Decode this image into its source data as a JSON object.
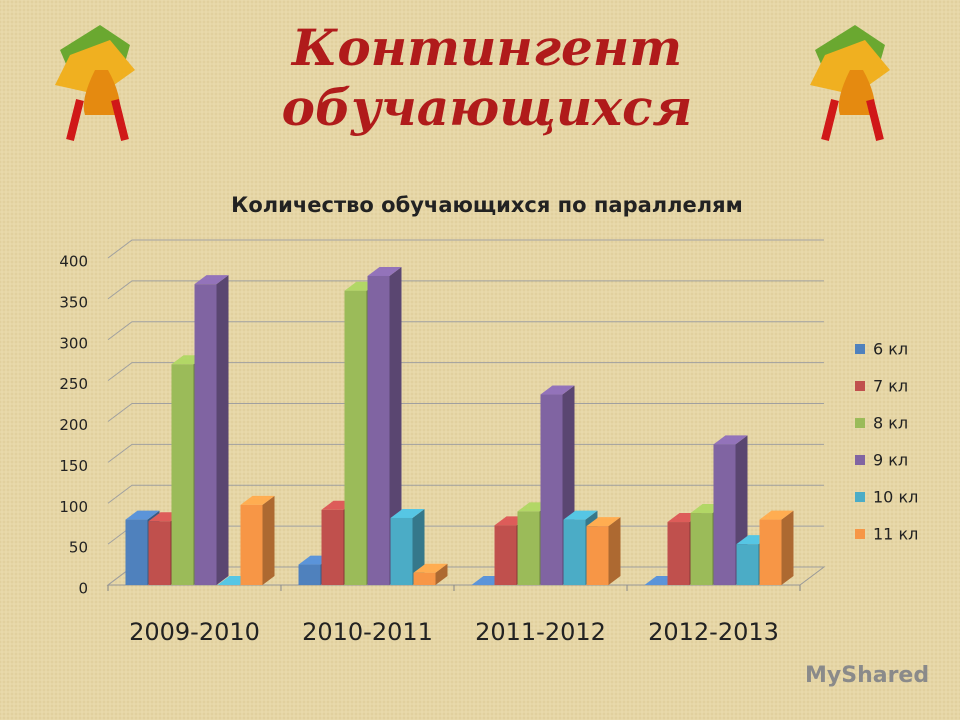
{
  "title": [
    "Контингент",
    "обучающихся"
  ],
  "watermark": "MyShared",
  "chart_data": {
    "type": "bar3d",
    "title": "Количество обучающихся по параллелям",
    "categories": [
      "2009-2010",
      "2010-2011",
      "2011-2012",
      "2012-2013"
    ],
    "series": [
      {
        "name": "6 кл",
        "color": "#4f81bd",
        "values": [
          80,
          25,
          0,
          0
        ]
      },
      {
        "name": "7 кл",
        "color": "#c0504d",
        "values": [
          78,
          92,
          73,
          77
        ]
      },
      {
        "name": "8 кл",
        "color": "#9bbb59",
        "values": [
          270,
          360,
          90,
          88
        ]
      },
      {
        "name": "9 кл",
        "color": "#8064a2",
        "values": [
          368,
          378,
          233,
          172
        ]
      },
      {
        "name": "10 кл",
        "color": "#4bacc6",
        "values": [
          0,
          82,
          80,
          50
        ]
      },
      {
        "name": "11 кл",
        "color": "#f79646",
        "values": [
          98,
          15,
          72,
          80
        ]
      }
    ],
    "ylim": [
      0,
      400
    ],
    "yticks": [
      0,
      50,
      100,
      150,
      200,
      250,
      300,
      350,
      400
    ],
    "grid": true,
    "legend": "right"
  }
}
